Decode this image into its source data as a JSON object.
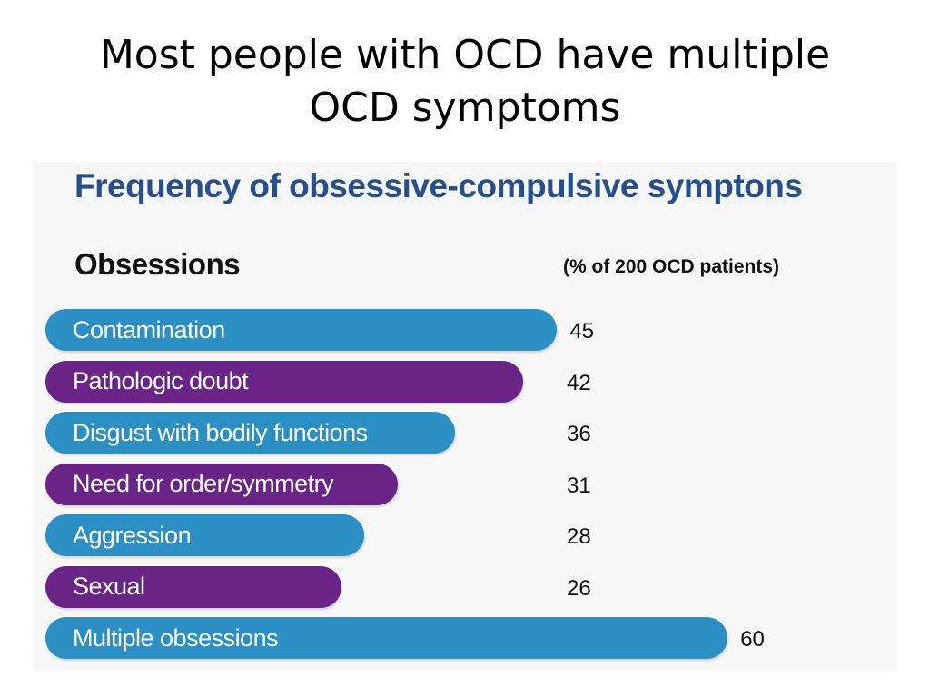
{
  "slide": {
    "title_lines": [
      "Most people with OCD have multiple",
      "OCD symptoms"
    ]
  },
  "chart_data": {
    "type": "bar",
    "orientation": "horizontal",
    "title": "Frequency of obsessive-compulsive symptons",
    "section_label": "Obsessions",
    "unit_label": "(% of 200 OCD patients)",
    "categories": [
      "Contamination",
      "Pathologic doubt",
      "Disgust with bodily functions",
      "Need for order/symmetry",
      "Aggression",
      "Sexual",
      "Multiple obsessions"
    ],
    "values": [
      45,
      42,
      36,
      31,
      28,
      26,
      60
    ],
    "bar_colors": [
      "#2b8fc4",
      "#6a2488",
      "#2b8fc4",
      "#6a2488",
      "#2b8fc4",
      "#6a2488",
      "#2b8fc4"
    ],
    "title_color": "#27508a",
    "grid": false
  }
}
